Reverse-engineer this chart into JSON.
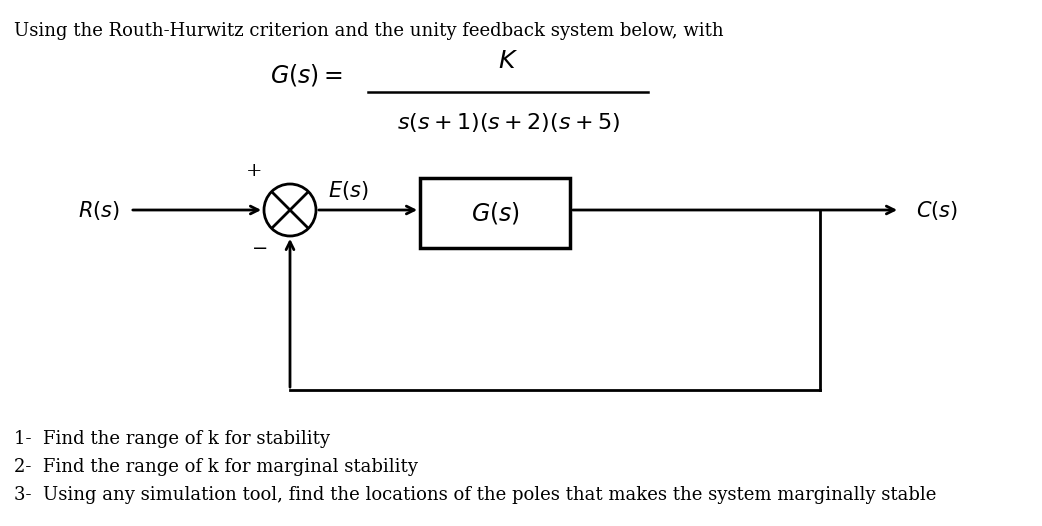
{
  "title_text": "Using the Routh-Hurwitz criterion and the unity feedback system below, with",
  "tf_lhs": "$G(s) =$",
  "tf_num": "$K$",
  "tf_den": "$s(s + 1)(s + 2)(s + 5)$",
  "label_Rs": "$R(s)$",
  "label_Es": "$E(s)$",
  "label_Gs": "$G(s)$",
  "label_Cs": "$C(s)$",
  "label_plus": "+",
  "label_minus": "−",
  "questions": [
    "1-  Find the range of k for stability",
    "2-  Find the range of k for marginal stability",
    "3-  Using any simulation tool, find the locations of the poles that makes the system marginally stable"
  ],
  "bg_color": "#ffffff",
  "line_color": "#000000",
  "title_fontsize": 13,
  "label_fontsize": 14,
  "tf_fontsize": 15,
  "question_fontsize": 13
}
